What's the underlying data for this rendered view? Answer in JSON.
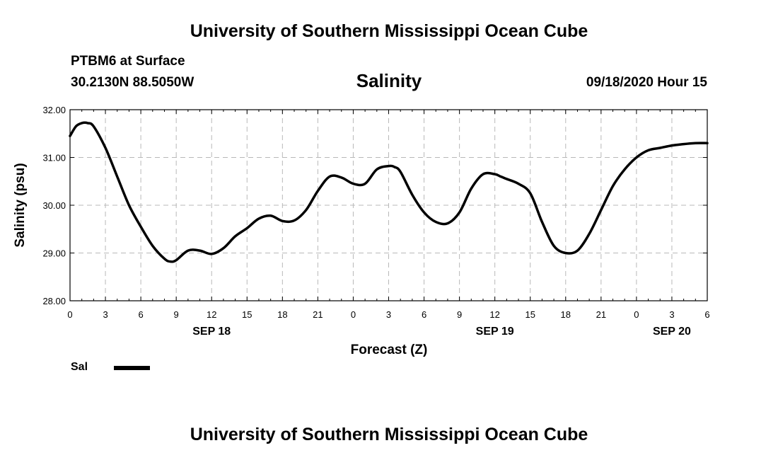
{
  "header": {
    "title": "University of Southern Mississippi Ocean Cube",
    "station": "PTBM6 at Surface",
    "coordinates": "30.2130N 88.5050W",
    "chart_title": "Salinity",
    "timestamp": "09/18/2020 Hour 15"
  },
  "footer": {
    "title": "University of Southern Mississippi Ocean Cube"
  },
  "legend": {
    "label": "Sal"
  },
  "chart_data": {
    "type": "line",
    "title": "Salinity",
    "xlabel": "Forecast (Z)",
    "ylabel": "Salinity (psu)",
    "xlim": [
      0,
      54
    ],
    "ylim": [
      28.0,
      32.0
    ],
    "yticks": [
      "28.00",
      "29.00",
      "30.00",
      "31.00",
      "32.00"
    ],
    "xticks": [
      {
        "h": 0,
        "label": "0"
      },
      {
        "h": 3,
        "label": "3"
      },
      {
        "h": 6,
        "label": "6"
      },
      {
        "h": 9,
        "label": "9"
      },
      {
        "h": 12,
        "label": "12"
      },
      {
        "h": 15,
        "label": "15"
      },
      {
        "h": 18,
        "label": "18"
      },
      {
        "h": 21,
        "label": "21"
      },
      {
        "h": 24,
        "label": "0"
      },
      {
        "h": 27,
        "label": "3"
      },
      {
        "h": 30,
        "label": "6"
      },
      {
        "h": 33,
        "label": "9"
      },
      {
        "h": 36,
        "label": "12"
      },
      {
        "h": 39,
        "label": "15"
      },
      {
        "h": 42,
        "label": "18"
      },
      {
        "h": 45,
        "label": "21"
      },
      {
        "h": 48,
        "label": "0"
      },
      {
        "h": 51,
        "label": "3"
      },
      {
        "h": 54,
        "label": "6"
      }
    ],
    "date_labels": [
      {
        "h": 12,
        "label": "SEP 18"
      },
      {
        "h": 36,
        "label": "SEP 19"
      },
      {
        "h": 51,
        "label": "SEP 20"
      }
    ],
    "grid": true,
    "series": [
      {
        "name": "Sal",
        "color": "#000000",
        "x": [
          0,
          0.5,
          1,
          1.5,
          2,
          3,
          4,
          5,
          6,
          7,
          8,
          8.5,
          9,
          10,
          11,
          12,
          13,
          14,
          15,
          16,
          17,
          18,
          19,
          20,
          21,
          22,
          23,
          24,
          25,
          26,
          27,
          27.5,
          28,
          29,
          30,
          31,
          32,
          33,
          34,
          35,
          36,
          36.5,
          37,
          38,
          39,
          40,
          41,
          42,
          43,
          44,
          45,
          46,
          47,
          48,
          49,
          50,
          51,
          52,
          53,
          54
        ],
        "values": [
          31.45,
          31.65,
          31.72,
          31.72,
          31.65,
          31.2,
          30.6,
          30.0,
          29.55,
          29.15,
          28.88,
          28.82,
          28.85,
          29.05,
          29.05,
          28.98,
          29.1,
          29.35,
          29.52,
          29.72,
          29.78,
          29.67,
          29.68,
          29.9,
          30.3,
          30.6,
          30.58,
          30.45,
          30.45,
          30.75,
          30.82,
          30.8,
          30.7,
          30.22,
          29.85,
          29.65,
          29.62,
          29.85,
          30.35,
          30.65,
          30.65,
          30.6,
          30.55,
          30.45,
          30.25,
          29.65,
          29.15,
          29.0,
          29.05,
          29.4,
          29.9,
          30.4,
          30.75,
          31.0,
          31.15,
          31.2,
          31.25,
          31.28,
          31.3,
          31.3
        ]
      }
    ]
  }
}
